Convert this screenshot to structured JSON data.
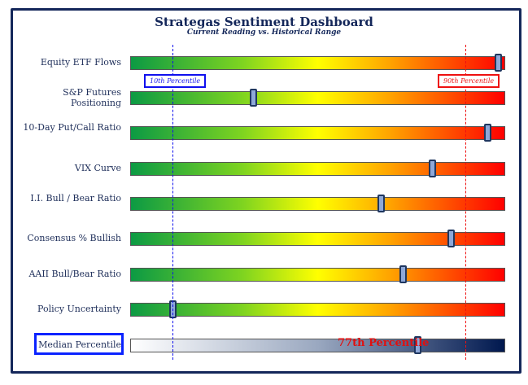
{
  "chart_data": {
    "type": "bar",
    "title": "Strategas Sentiment Dashboard",
    "subtitle": "Current Reading vs. Historical Range",
    "xlim": [
      0,
      100
    ],
    "reference_lines": [
      {
        "label": "10th Percentile",
        "value": 10,
        "color": "#1010ee"
      },
      {
        "label": "90th Percentile",
        "value": 90,
        "color": "#ee1010"
      }
    ],
    "categories": [
      "Equity ETF Flows",
      "S&P Futures Positioning",
      "10-Day Put/Call Ratio",
      "VIX Curve",
      "I.I. Bull / Bear Ratio",
      "Consensus % Bullish",
      "AAII Bull/Bear Ratio",
      "Policy Uncertainty",
      "Median Percentile"
    ],
    "values": [
      99,
      32,
      96,
      81,
      67,
      86,
      73,
      10,
      77
    ],
    "median_label": "77th Percentile"
  }
}
